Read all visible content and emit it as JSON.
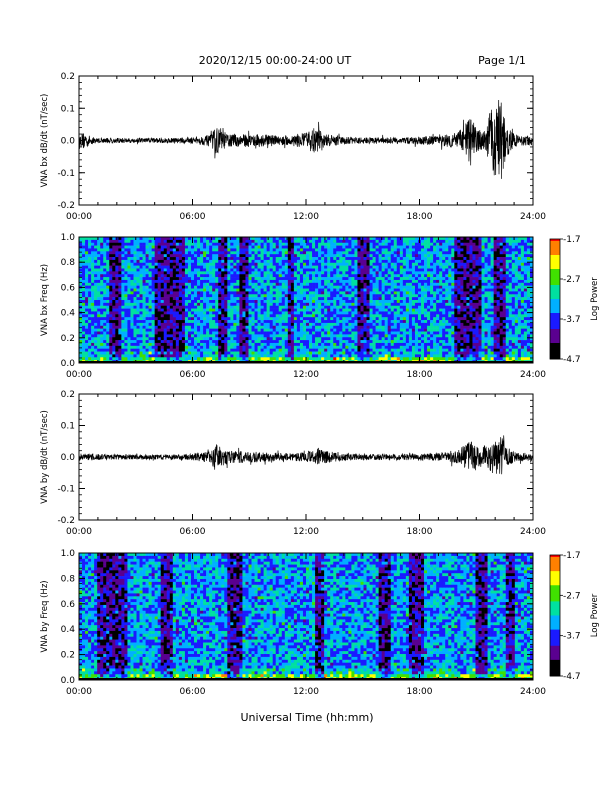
{
  "header": {
    "title": "2020/12/15  00:00-24:00 UT",
    "page": "Page 1/1"
  },
  "xlabel": "Universal Time (hh:mm)",
  "colors": {
    "trace": "#000000",
    "colormap": [
      "#000000",
      "#5a0090",
      "#1a1aff",
      "#00b0ff",
      "#00e0a0",
      "#40e000",
      "#ffff00",
      "#ff8000",
      "#ff0000"
    ]
  },
  "chart_data": [
    {
      "type": "line",
      "ylabel": "VNA bx dB/dt (nT/sec)",
      "xlim": [
        0,
        24
      ],
      "ylim": [
        -0.2,
        0.2
      ],
      "xticks": [
        "00:00",
        "06:00",
        "12:00",
        "18:00",
        "24:00"
      ],
      "yticks": [
        "-0.2",
        "-0.1",
        "0.0",
        "0.1",
        "0.2"
      ],
      "series": [
        {
          "x": [
            0,
            0.3,
            0.6,
            1,
            2,
            3,
            4,
            5,
            6,
            7,
            7.2,
            7.5,
            8,
            9,
            10,
            11,
            12,
            12.4,
            12.8,
            13,
            14,
            15,
            16,
            17,
            18,
            19,
            20,
            20.4,
            20.7,
            21,
            21.5,
            21.8,
            22,
            22.3,
            22.6,
            23,
            23.5,
            24
          ],
          "amp": [
            0.015,
            0.03,
            0.012,
            0.008,
            0.008,
            0.008,
            0.008,
            0.008,
            0.01,
            0.018,
            0.045,
            0.03,
            0.02,
            0.02,
            0.018,
            0.015,
            0.025,
            0.04,
            0.035,
            0.02,
            0.012,
            0.01,
            0.01,
            0.01,
            0.012,
            0.015,
            0.025,
            0.05,
            0.08,
            0.04,
            0.03,
            0.11,
            0.12,
            0.13,
            0.05,
            0.02,
            0.015,
            0.015
          ]
        }
      ]
    },
    {
      "type": "heatmap",
      "ylabel": "VNA bx Freq (Hz)",
      "xlim": [
        0,
        24
      ],
      "ylim": [
        0,
        1.0
      ],
      "xticks": [
        "00:00",
        "06:00",
        "12:00",
        "18:00",
        "24:00"
      ],
      "yticks": [
        "0.0",
        "0.2",
        "0.4",
        "0.6",
        "0.8",
        "1.0"
      ],
      "colorbar": {
        "label": "Log Power",
        "range": [
          -4.7,
          -1.7
        ],
        "ticks": [
          "-1.7",
          "-2.7",
          "-3.7",
          "-4.7"
        ]
      },
      "dark_bands": [
        [
          1.6,
          2.3
        ],
        [
          4.0,
          5.6
        ],
        [
          7.3,
          7.8
        ],
        [
          8.5,
          9.0
        ],
        [
          11.0,
          11.4
        ],
        [
          14.8,
          15.3
        ],
        [
          19.8,
          21.3
        ],
        [
          22.0,
          22.5
        ]
      ]
    },
    {
      "type": "line",
      "ylabel": "VNA by dB/dt (nT/sec)",
      "xlim": [
        0,
        24
      ],
      "ylim": [
        -0.2,
        0.2
      ],
      "xticks": [
        "00:00",
        "06:00",
        "12:00",
        "18:00",
        "24:00"
      ],
      "yticks": [
        "-0.2",
        "-0.1",
        "0.0",
        "0.1",
        "0.2"
      ],
      "series": [
        {
          "x": [
            0,
            1,
            2,
            3,
            4,
            5,
            6,
            7,
            7.2,
            7.5,
            8,
            9,
            10,
            11,
            12,
            12.7,
            13,
            14,
            15,
            16,
            17,
            18,
            19,
            20,
            20.5,
            20.8,
            21.2,
            21.8,
            22,
            22.3,
            22.6,
            23,
            24
          ],
          "amp": [
            0.012,
            0.01,
            0.008,
            0.008,
            0.008,
            0.008,
            0.01,
            0.02,
            0.045,
            0.03,
            0.02,
            0.018,
            0.015,
            0.012,
            0.015,
            0.03,
            0.02,
            0.012,
            0.01,
            0.01,
            0.01,
            0.01,
            0.012,
            0.02,
            0.045,
            0.05,
            0.03,
            0.05,
            0.06,
            0.07,
            0.035,
            0.015,
            0.012
          ]
        }
      ]
    },
    {
      "type": "heatmap",
      "ylabel": "VNA by Freq (Hz)",
      "xlim": [
        0,
        24
      ],
      "ylim": [
        0,
        1.0
      ],
      "xticks": [
        "00:00",
        "06:00",
        "12:00",
        "18:00",
        "24:00"
      ],
      "yticks": [
        "0.0",
        "0.2",
        "0.4",
        "0.6",
        "0.8",
        "1.0"
      ],
      "colorbar": {
        "label": "Log Power",
        "range": [
          -4.7,
          -1.7
        ],
        "ticks": [
          "-1.7",
          "-2.7",
          "-3.7",
          "-4.7"
        ]
      },
      "dark_bands": [
        [
          1.0,
          2.6
        ],
        [
          4.3,
          5.0
        ],
        [
          7.8,
          8.6
        ],
        [
          12.5,
          13.0
        ],
        [
          15.8,
          16.4
        ],
        [
          17.5,
          18.3
        ],
        [
          21.0,
          21.6
        ],
        [
          22.5,
          23.0
        ]
      ]
    }
  ]
}
